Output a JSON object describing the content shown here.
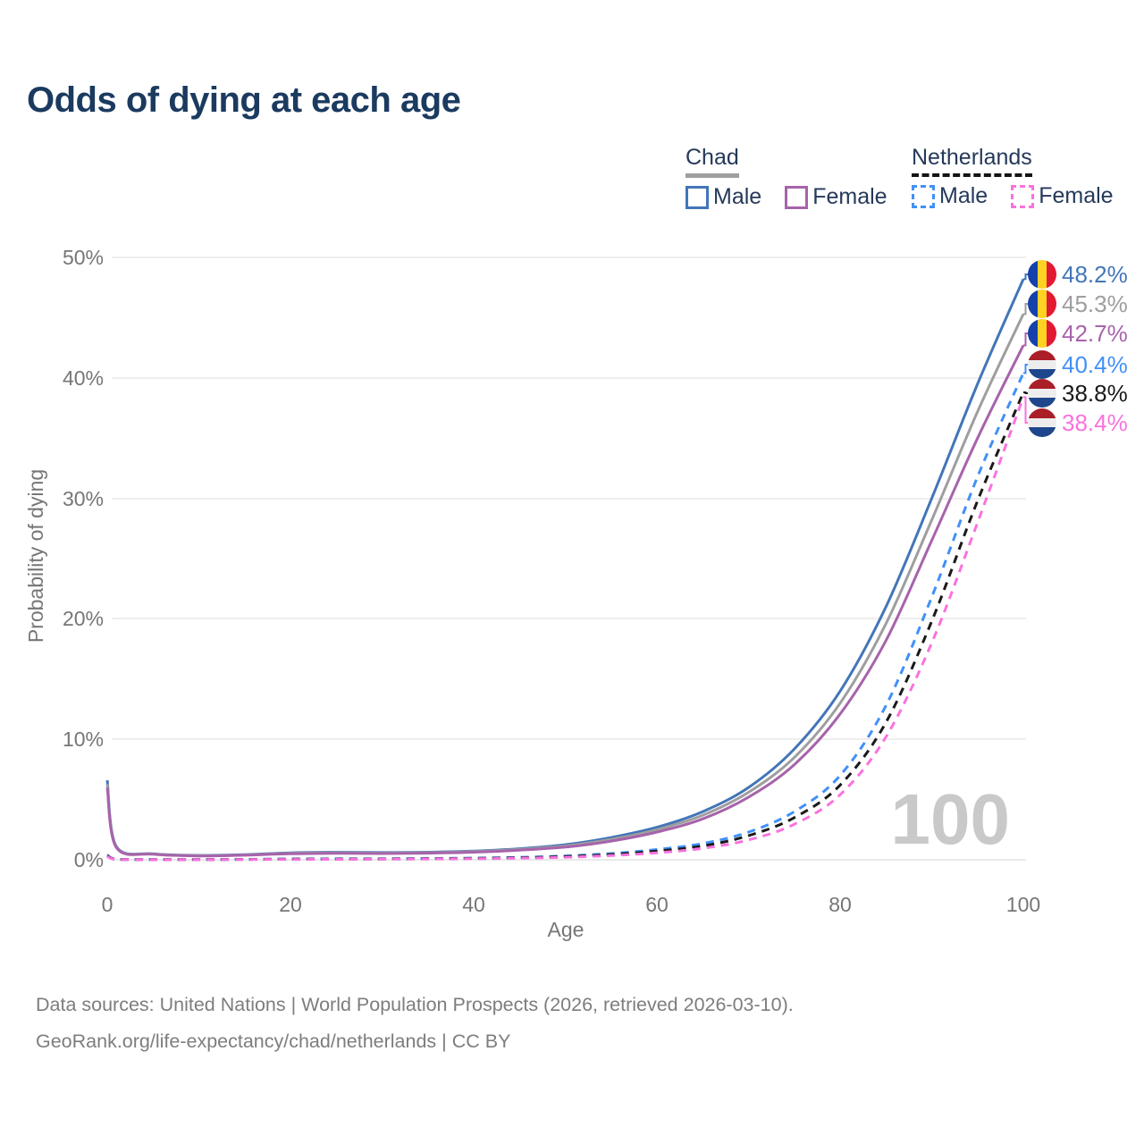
{
  "title": "Odds of dying at each age",
  "legend": {
    "groups": [
      {
        "country": "Chad",
        "items": [
          {
            "label": "Male"
          },
          {
            "label": "Female"
          }
        ]
      },
      {
        "country": "Netherlands",
        "items": [
          {
            "label": "Male"
          },
          {
            "label": "Female"
          }
        ]
      }
    ]
  },
  "chart_data": {
    "type": "line",
    "title": "Odds of dying at each age",
    "xlabel": "Age",
    "ylabel": "Probability of dying",
    "xlim": [
      0,
      100
    ],
    "ylim": [
      0,
      50
    ],
    "xticks": [
      "0",
      "20",
      "40",
      "60",
      "80",
      "100"
    ],
    "yticks": [
      "0%",
      "10%",
      "20%",
      "30%",
      "40%",
      "50%"
    ],
    "grid": "horizontal",
    "legend_position": "top-right",
    "age_indicator": "100",
    "series": [
      {
        "name": "Chad Male",
        "country": "Chad",
        "sex": "Male",
        "style": "solid",
        "color": "#4375b8",
        "end_label": "48.2%",
        "end_value": 48.2,
        "flag": "chad",
        "points": [
          [
            0,
            6.6
          ],
          [
            1,
            1.1
          ],
          [
            5,
            0.5
          ],
          [
            10,
            0.36
          ],
          [
            15,
            0.42
          ],
          [
            20,
            0.58
          ],
          [
            25,
            0.62
          ],
          [
            30,
            0.6
          ],
          [
            35,
            0.63
          ],
          [
            40,
            0.72
          ],
          [
            45,
            0.92
          ],
          [
            50,
            1.25
          ],
          [
            55,
            1.85
          ],
          [
            60,
            2.7
          ],
          [
            65,
            4.0
          ],
          [
            70,
            6.0
          ],
          [
            75,
            9.2
          ],
          [
            80,
            14.0
          ],
          [
            85,
            21.0
          ],
          [
            90,
            30.0
          ],
          [
            95,
            39.5
          ],
          [
            100,
            48.2
          ]
        ]
      },
      {
        "name": "Chad Both sexes",
        "country": "Chad",
        "sex": "Both",
        "style": "solid",
        "color": "#9e9e9e",
        "end_label": "45.3%",
        "end_value": 45.3,
        "flag": "chad",
        "points": [
          [
            0,
            6.3
          ],
          [
            1,
            1.05
          ],
          [
            5,
            0.48
          ],
          [
            10,
            0.34
          ],
          [
            15,
            0.4
          ],
          [
            20,
            0.54
          ],
          [
            25,
            0.58
          ],
          [
            30,
            0.56
          ],
          [
            35,
            0.59
          ],
          [
            40,
            0.68
          ],
          [
            45,
            0.86
          ],
          [
            50,
            1.15
          ],
          [
            55,
            1.7
          ],
          [
            60,
            2.5
          ],
          [
            65,
            3.7
          ],
          [
            70,
            5.6
          ],
          [
            75,
            8.5
          ],
          [
            80,
            13.0
          ],
          [
            85,
            19.6
          ],
          [
            90,
            28.2
          ],
          [
            95,
            37.2
          ],
          [
            100,
            45.3
          ]
        ]
      },
      {
        "name": "Chad Female",
        "country": "Chad",
        "sex": "Female",
        "style": "solid",
        "color": "#a763ab",
        "end_label": "42.7%",
        "end_value": 42.7,
        "flag": "chad",
        "points": [
          [
            0,
            6.0
          ],
          [
            1,
            1.0
          ],
          [
            5,
            0.46
          ],
          [
            10,
            0.32
          ],
          [
            15,
            0.38
          ],
          [
            20,
            0.5
          ],
          [
            25,
            0.54
          ],
          [
            30,
            0.52
          ],
          [
            35,
            0.55
          ],
          [
            40,
            0.63
          ],
          [
            45,
            0.8
          ],
          [
            50,
            1.05
          ],
          [
            55,
            1.55
          ],
          [
            60,
            2.3
          ],
          [
            65,
            3.4
          ],
          [
            70,
            5.2
          ],
          [
            75,
            7.9
          ],
          [
            80,
            12.1
          ],
          [
            85,
            18.2
          ],
          [
            90,
            26.5
          ],
          [
            95,
            35.0
          ],
          [
            100,
            42.7
          ]
        ]
      },
      {
        "name": "Netherlands Male",
        "country": "Netherlands",
        "sex": "Male",
        "style": "dashed",
        "color": "#4190f7",
        "end_label": "40.4%",
        "end_value": 40.4,
        "flag": "nl",
        "points": [
          [
            0,
            0.4
          ],
          [
            1,
            0.05
          ],
          [
            5,
            0.02
          ],
          [
            10,
            0.02
          ],
          [
            15,
            0.04
          ],
          [
            20,
            0.07
          ],
          [
            25,
            0.08
          ],
          [
            30,
            0.09
          ],
          [
            35,
            0.11
          ],
          [
            40,
            0.14
          ],
          [
            45,
            0.2
          ],
          [
            50,
            0.32
          ],
          [
            55,
            0.52
          ],
          [
            60,
            0.85
          ],
          [
            65,
            1.35
          ],
          [
            70,
            2.3
          ],
          [
            75,
            4.0
          ],
          [
            80,
            7.0
          ],
          [
            85,
            12.8
          ],
          [
            90,
            21.8
          ],
          [
            95,
            31.8
          ],
          [
            100,
            40.4
          ]
        ]
      },
      {
        "name": "Netherlands Both sexes",
        "country": "Netherlands",
        "sex": "Both",
        "style": "dashed",
        "color": "#1a1a1a",
        "end_label": "38.8%",
        "end_value": 38.8,
        "flag": "nl",
        "points": [
          [
            0,
            0.35
          ],
          [
            1,
            0.04
          ],
          [
            5,
            0.02
          ],
          [
            10,
            0.02
          ],
          [
            15,
            0.03
          ],
          [
            20,
            0.05
          ],
          [
            25,
            0.06
          ],
          [
            30,
            0.07
          ],
          [
            35,
            0.09
          ],
          [
            40,
            0.12
          ],
          [
            45,
            0.17
          ],
          [
            50,
            0.27
          ],
          [
            55,
            0.44
          ],
          [
            60,
            0.72
          ],
          [
            65,
            1.15
          ],
          [
            70,
            2.0
          ],
          [
            75,
            3.5
          ],
          [
            80,
            6.2
          ],
          [
            85,
            11.4
          ],
          [
            90,
            19.8
          ],
          [
            95,
            29.8
          ],
          [
            100,
            38.8
          ]
        ]
      },
      {
        "name": "Netherlands Female",
        "country": "Netherlands",
        "sex": "Female",
        "style": "dashed",
        "color": "#f972de",
        "end_label": "38.4%",
        "end_value": 38.4,
        "flag": "nl",
        "points": [
          [
            0,
            0.28
          ],
          [
            1,
            0.03
          ],
          [
            5,
            0.01
          ],
          [
            10,
            0.01
          ],
          [
            15,
            0.02
          ],
          [
            20,
            0.03
          ],
          [
            25,
            0.04
          ],
          [
            30,
            0.05
          ],
          [
            35,
            0.07
          ],
          [
            40,
            0.09
          ],
          [
            45,
            0.13
          ],
          [
            50,
            0.21
          ],
          [
            55,
            0.35
          ],
          [
            60,
            0.58
          ],
          [
            65,
            0.95
          ],
          [
            70,
            1.65
          ],
          [
            75,
            2.95
          ],
          [
            80,
            5.4
          ],
          [
            85,
            10.2
          ],
          [
            90,
            18.0
          ],
          [
            95,
            28.0
          ],
          [
            100,
            38.4
          ]
        ]
      }
    ],
    "flag_colors": {
      "chad": [
        "#1441aa",
        "#ffd123",
        "#e11932"
      ],
      "nl": [
        "#aa1e28",
        "#ededed",
        "#1e468c"
      ]
    }
  },
  "footer": {
    "line1": "Data sources: United Nations | World Population Prospects (2026, retrieved 2026-03-10).",
    "line2": "GeoRank.org/life-expectancy/chad/netherlands | CC BY"
  }
}
